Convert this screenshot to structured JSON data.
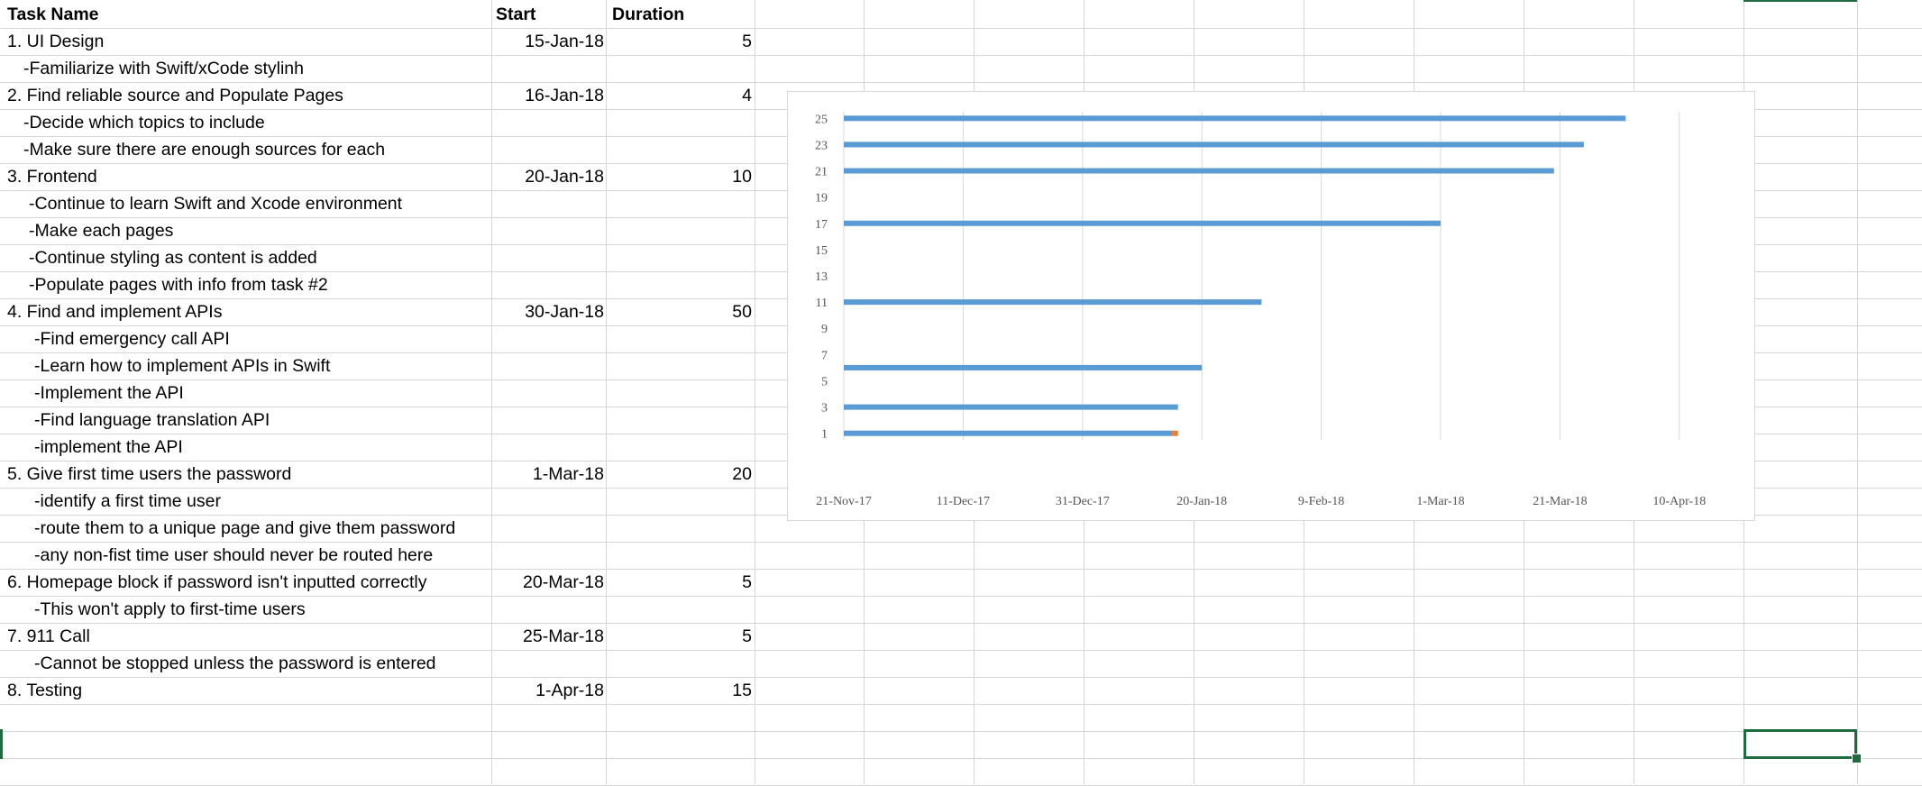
{
  "headers": {
    "task": "Task Name",
    "start": "Start",
    "duration": "Duration"
  },
  "rows": [
    {
      "task": "1. UI Design",
      "start": "15-Jan-18",
      "duration": "5",
      "indent": 0
    },
    {
      "task": "-Familiarize with Swift/xCode stylinh",
      "start": "",
      "duration": "",
      "indent": 1
    },
    {
      "task": "2. Find reliable source and Populate Pages",
      "start": "16-Jan-18",
      "duration": "4",
      "indent": 0
    },
    {
      "task": "-Decide which topics to include",
      "start": "",
      "duration": "",
      "indent": 1
    },
    {
      "task": "-Make sure there are enough sources for each",
      "start": "",
      "duration": "",
      "indent": 1
    },
    {
      "task": "3. Frontend",
      "start": "20-Jan-18",
      "duration": "10",
      "indent": 0
    },
    {
      "task": "-Continue to learn Swift and Xcode environment",
      "start": "",
      "duration": "",
      "indent": 2
    },
    {
      "task": "-Make each pages",
      "start": "",
      "duration": "",
      "indent": 2
    },
    {
      "task": "-Continue styling as content is added",
      "start": "",
      "duration": "",
      "indent": 2
    },
    {
      "task": "-Populate pages with info from task #2",
      "start": "",
      "duration": "",
      "indent": 2
    },
    {
      "task": "4. Find and implement APIs",
      "start": "30-Jan-18",
      "duration": "50",
      "indent": 0
    },
    {
      "task": "-Find emergency call API",
      "start": "",
      "duration": "",
      "indent": 3
    },
    {
      "task": "-Learn how to implement APIs in Swift",
      "start": "",
      "duration": "",
      "indent": 3
    },
    {
      "task": "-Implement the API",
      "start": "",
      "duration": "",
      "indent": 3
    },
    {
      "task": "-Find language translation API",
      "start": "",
      "duration": "",
      "indent": 3
    },
    {
      "task": "-implement the API",
      "start": "",
      "duration": "",
      "indent": 3
    },
    {
      "task": "5. Give first time users the password",
      "start": "1-Mar-18",
      "duration": "20",
      "indent": 0
    },
    {
      "task": "-identify a first time user",
      "start": "",
      "duration": "",
      "indent": 3
    },
    {
      "task": "-route them to a unique page and give them password",
      "start": "",
      "duration": "",
      "indent": 3
    },
    {
      "task": "-any non-fist time user should never be routed here",
      "start": "",
      "duration": "",
      "indent": 3
    },
    {
      "task": "6. Homepage block if password isn't inputted correctly",
      "start": "20-Mar-18",
      "duration": "5",
      "indent": 0
    },
    {
      "task": "-This won't apply to first-time users",
      "start": "",
      "duration": "",
      "indent": 3
    },
    {
      "task": "7. 911 Call",
      "start": "25-Mar-18",
      "duration": "5",
      "indent": 0
    },
    {
      "task": "-Cannot be stopped unless the password is entered",
      "start": "",
      "duration": "",
      "indent": 3
    },
    {
      "task": "8. Testing",
      "start": "1-Apr-18",
      "duration": "15",
      "indent": 0
    }
  ],
  "chart_data": {
    "type": "bar",
    "orientation": "horizontal",
    "y_ticks": [
      "1",
      "3",
      "5",
      "7",
      "9",
      "11",
      "13",
      "15",
      "17",
      "19",
      "21",
      "23",
      "25"
    ],
    "x_ticks": [
      "21-Nov-17",
      "11-Dec-17",
      "31-Dec-17",
      "20-Jan-18",
      "9-Feb-18",
      "1-Mar-18",
      "21-Mar-18",
      "10-Apr-18"
    ],
    "x_range": [
      "21-Nov-17",
      "20-Apr-18"
    ],
    "y_range": [
      1,
      25
    ],
    "grid": true,
    "bar_color": "#5b9bd5",
    "accent_color": "#ed7d31",
    "bars": [
      {
        "y": 1,
        "end": "15-Jan-18"
      },
      {
        "y": 3,
        "end": "16-Jan-18"
      },
      {
        "y": 6,
        "end": "20-Jan-18"
      },
      {
        "y": 11,
        "end": "30-Jan-18"
      },
      {
        "y": 17,
        "end": "1-Mar-18"
      },
      {
        "y": 21,
        "end": "20-Mar-18"
      },
      {
        "y": 23,
        "end": "25-Mar-18"
      },
      {
        "y": 25,
        "end": "1-Apr-18"
      }
    ],
    "accent_mark": {
      "y": 1,
      "start": "15-Jan-18",
      "end": "16-Jan-18"
    }
  }
}
